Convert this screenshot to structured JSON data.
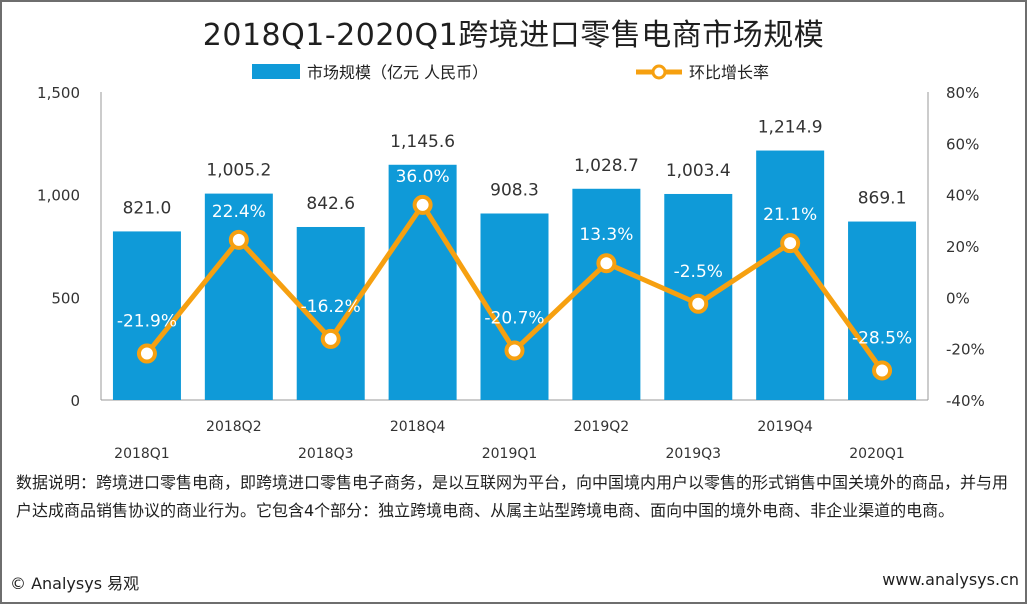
{
  "title": "2018Q1-2020Q1跨境进口零售电商市场规模",
  "chart_data": {
    "type": "bar",
    "categories": [
      "2018Q1",
      "2018Q2",
      "2018Q3",
      "2018Q4",
      "2019Q1",
      "2019Q2",
      "2019Q3",
      "2019Q4",
      "2020Q1"
    ],
    "series": [
      {
        "name": "市场规模（亿元 人民币）",
        "type": "bar",
        "axis": "left",
        "color": "#0f9ad8",
        "values": [
          821.0,
          1005.2,
          842.6,
          1145.6,
          908.3,
          1028.7,
          1003.4,
          1214.9,
          869.1
        ],
        "labels": [
          "821.0",
          "1,005.2",
          "842.6",
          "1,145.6",
          "908.3",
          "1,028.7",
          "1,003.4",
          "1,214.9",
          "869.1"
        ]
      },
      {
        "name": "环比增长率",
        "type": "line",
        "axis": "right",
        "color": "#f6a010",
        "values": [
          -21.9,
          22.4,
          -16.2,
          36.0,
          -20.7,
          13.3,
          -2.5,
          21.1,
          -28.5
        ],
        "labels": [
          "-21.9%",
          "22.4%",
          "-16.2%",
          "36.0%",
          "-20.7%",
          "13.3%",
          "-2.5%",
          "21.1%",
          "-28.5%"
        ]
      }
    ],
    "y_left": {
      "range": [
        0,
        1500
      ],
      "ticks": [
        0,
        500,
        1000,
        1500
      ],
      "tick_labels": [
        "0",
        "500",
        "1,000",
        "1,500"
      ]
    },
    "y_right": {
      "range": [
        -40,
        80
      ],
      "ticks": [
        -40,
        -20,
        0,
        20,
        40,
        60,
        80
      ],
      "tick_labels": [
        "-40%",
        "-20%",
        "0%",
        "20%",
        "40%",
        "60%",
        "80%"
      ]
    },
    "legend_position": "top-center",
    "grid": false
  },
  "note": "数据说明：跨境进口零售电商，即跨境进口零售电子商务，是以互联网为平台，向中国境内用户以零售的形式销售中国关境外的商品，并与用户达成商品销售协议的商业行为。它包含4个部分：独立跨境电商、从属主站型跨境电商、面向中国的境外电商、非企业渠道的电商。",
  "footer": {
    "left": "© Analysys 易观",
    "right": "www.analysys.cn"
  }
}
